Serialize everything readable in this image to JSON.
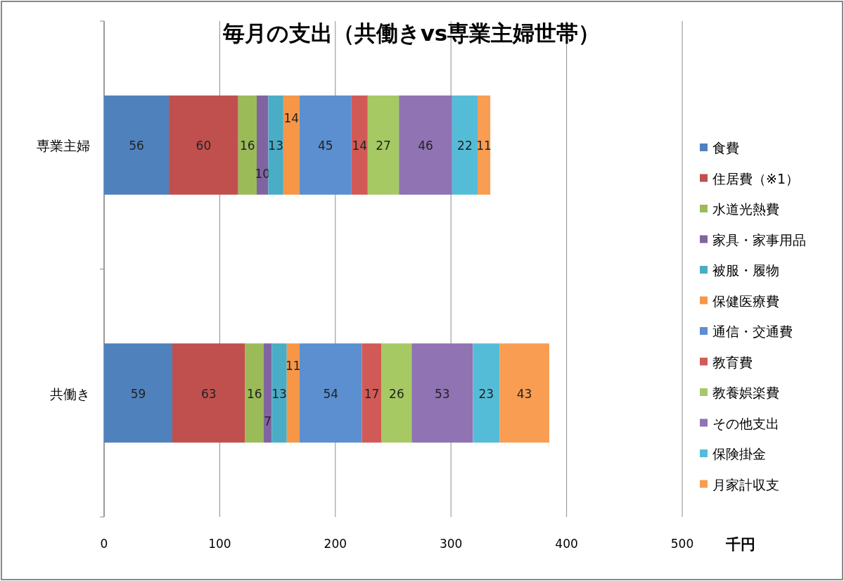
{
  "chart_data": {
    "type": "bar",
    "orientation": "horizontal",
    "stacked": true,
    "title": "毎月の支出（共働きvs専業主婦世帯）",
    "xlabel": "千円",
    "categories": [
      "専業主婦",
      "共働き"
    ],
    "xlim": [
      0,
      500
    ],
    "xticks": [
      0,
      100,
      200,
      300,
      400,
      500
    ],
    "grid": "x",
    "legend": "right",
    "data_labels": true,
    "series": [
      {
        "name": "食費",
        "color": "#4f81bd",
        "values": [
          56,
          59
        ]
      },
      {
        "name": "住居費（※1）",
        "color": "#c0504d",
        "values": [
          60,
          63
        ]
      },
      {
        "name": "水道光熱費",
        "color": "#9bbb59",
        "values": [
          16,
          16
        ]
      },
      {
        "name": "家具・家事用品",
        "color": "#8064a2",
        "values": [
          10,
          7
        ]
      },
      {
        "name": "被服・履物",
        "color": "#4bacc6",
        "values": [
          13,
          13
        ]
      },
      {
        "name": "保健医療費",
        "color": "#f79646",
        "values": [
          14,
          11
        ]
      },
      {
        "name": "通信・交通費",
        "color": "#5b8fd0",
        "values": [
          45,
          54
        ]
      },
      {
        "name": "教育費",
        "color": "#d25a56",
        "values": [
          14,
          17
        ]
      },
      {
        "name": "教養娯楽費",
        "color": "#a6c964",
        "values": [
          27,
          26
        ]
      },
      {
        "name": "その他支出",
        "color": "#8f73b3",
        "values": [
          46,
          53
        ]
      },
      {
        "name": "保険掛金",
        "color": "#55bcd8",
        "values": [
          22,
          23
        ]
      },
      {
        "name": "月家計収支",
        "color": "#f89d52",
        "values": [
          11,
          43
        ]
      }
    ]
  }
}
